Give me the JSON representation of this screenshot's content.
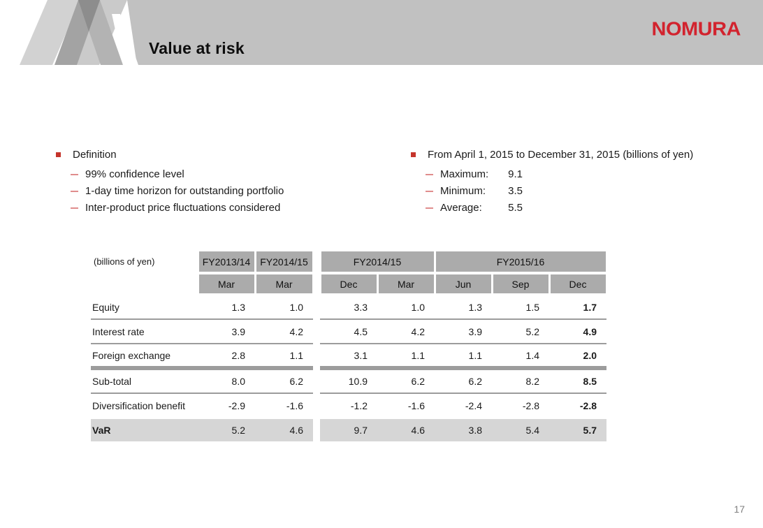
{
  "slide": {
    "title": "Value at risk",
    "brand": "NOMURA",
    "page_number": "17"
  },
  "definition_section": {
    "heading": "Definition",
    "items": [
      "99% confidence level",
      "1-day time horizon for outstanding portfolio",
      "Inter-product price fluctuations considered"
    ]
  },
  "period_section": {
    "heading": "From April 1, 2015 to December 31, 2015 (billions of yen)",
    "items": [
      {
        "label": "Maximum:",
        "value": "9.1"
      },
      {
        "label": "Minimum:",
        "value": "3.5"
      },
      {
        "label": "Average:",
        "value": "5.5"
      }
    ]
  },
  "table": {
    "units_note": "(billions of yen)",
    "left_block": {
      "year_headers": [
        "FY2013/14",
        "FY2014/15"
      ],
      "month_headers": [
        "Mar",
        "Mar"
      ]
    },
    "right_block": {
      "year_headers": [
        {
          "label": "FY2014/15",
          "span": 2
        },
        {
          "label": "FY2015/16",
          "span": 3
        }
      ],
      "month_headers": [
        "Dec",
        "Mar",
        "Jun",
        "Sep",
        "Dec"
      ]
    },
    "rows": [
      {
        "label": "Equity",
        "left": [
          "1.3",
          "1.0"
        ],
        "right": [
          "3.3",
          "1.0",
          "1.3",
          "1.5",
          "1.7"
        ]
      },
      {
        "label": "Interest rate",
        "left": [
          "3.9",
          "4.2"
        ],
        "right": [
          "4.5",
          "4.2",
          "3.9",
          "5.2",
          "4.9"
        ]
      },
      {
        "label": "Foreign exchange",
        "left": [
          "2.8",
          "1.1"
        ],
        "right": [
          "3.1",
          "1.1",
          "1.1",
          "1.4",
          "2.0"
        ]
      },
      {
        "label": "Sub-total",
        "left": [
          "8.0",
          "6.2"
        ],
        "right": [
          "10.9",
          "6.2",
          "6.2",
          "8.2",
          "8.5"
        ]
      },
      {
        "label": "Diversification benefit",
        "left": [
          "-2.9",
          "-1.6"
        ],
        "right": [
          "-1.2",
          "-1.6",
          "-2.4",
          "-2.8",
          "-2.8"
        ]
      },
      {
        "label": "VaR",
        "left": [
          "5.2",
          "4.6"
        ],
        "right": [
          "9.7",
          "4.6",
          "3.8",
          "5.4",
          "5.7"
        ]
      }
    ]
  },
  "colors": {
    "brand_red": "#d2232e",
    "bullet_red": "#c5342b",
    "sub_bullet_red": "#e08d8d",
    "banner_gray": "#c1c1c1",
    "table_header_gray": "#ababab",
    "var_row_gray": "#d6d6d6",
    "rule_gray": "#9c9c9c",
    "page_number_gray": "#7f7f7f"
  }
}
